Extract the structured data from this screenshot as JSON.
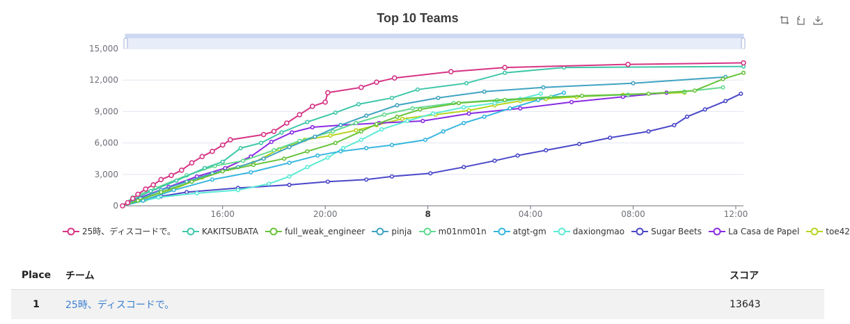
{
  "title": "Top 10 Teams",
  "toolbox": {
    "icons": [
      "zoom-icon",
      "zoom-reset-icon",
      "download-icon"
    ]
  },
  "chart_data": {
    "type": "line",
    "title": "Top 10 Teams",
    "x_axis": {
      "type": "time",
      "tick_labels": [
        "16:00",
        "20:00",
        "8",
        "04:00",
        "08:00",
        "12:00"
      ],
      "range_hours": [
        12.1,
        36.3
      ]
    },
    "y_axis": {
      "tick_labels": [
        "0",
        "3,000",
        "6,000",
        "9,000",
        "12,000",
        "15,000"
      ],
      "ylim": [
        0,
        15000
      ]
    },
    "grid": "horizontal",
    "legend_position": "bottom",
    "data_zoom": "top",
    "series": [
      {
        "name": "25時、ディスコードで。",
        "color": "#d63384",
        "points": [
          [
            12.1,
            0
          ],
          [
            12.3,
            300
          ],
          [
            12.5,
            700
          ],
          [
            12.7,
            1100
          ],
          [
            13.0,
            1600
          ],
          [
            13.3,
            2000
          ],
          [
            13.6,
            2500
          ],
          [
            14.0,
            2900
          ],
          [
            14.4,
            3400
          ],
          [
            14.8,
            4100
          ],
          [
            15.2,
            4700
          ],
          [
            15.6,
            5200
          ],
          [
            16.0,
            5800
          ],
          [
            16.3,
            6300
          ],
          [
            17.6,
            6800
          ],
          [
            18.0,
            7100
          ],
          [
            18.5,
            7900
          ],
          [
            19.0,
            8700
          ],
          [
            19.5,
            9500
          ],
          [
            20.0,
            9900
          ],
          [
            20.1,
            10800
          ],
          [
            21.4,
            11300
          ],
          [
            22.0,
            11800
          ],
          [
            22.7,
            12200
          ],
          [
            24.9,
            12800
          ],
          [
            27.0,
            13200
          ],
          [
            31.8,
            13500
          ],
          [
            36.3,
            13643
          ]
        ]
      },
      {
        "name": "KAKITSUBATA",
        "color": "#3ec7a8",
        "points": [
          [
            12.1,
            0
          ],
          [
            12.5,
            600
          ],
          [
            13.2,
            1400
          ],
          [
            14.2,
            2400
          ],
          [
            15.3,
            3600
          ],
          [
            16.0,
            4200
          ],
          [
            16.7,
            5500
          ],
          [
            17.5,
            6000
          ],
          [
            18.3,
            7000
          ],
          [
            19.3,
            8000
          ],
          [
            20.4,
            8900
          ],
          [
            21.3,
            9700
          ],
          [
            22.6,
            10300
          ],
          [
            23.6,
            11100
          ],
          [
            25.5,
            11700
          ],
          [
            27.0,
            12700
          ],
          [
            29.3,
            13200
          ],
          [
            36.3,
            13300
          ]
        ]
      },
      {
        "name": "full_weak_engineer",
        "color": "#66c33a",
        "points": [
          [
            12.1,
            0
          ],
          [
            12.7,
            500
          ],
          [
            13.6,
            1300
          ],
          [
            14.8,
            2300
          ],
          [
            16.0,
            3300
          ],
          [
            17.2,
            3900
          ],
          [
            18.4,
            4500
          ],
          [
            19.3,
            5200
          ],
          [
            20.4,
            6000
          ],
          [
            21.4,
            7100
          ],
          [
            22.0,
            7800
          ],
          [
            22.8,
            8500
          ],
          [
            23.7,
            9200
          ],
          [
            25.2,
            9800
          ],
          [
            27.0,
            10100
          ],
          [
            30.0,
            10500
          ],
          [
            32.6,
            10700
          ],
          [
            34.4,
            11000
          ],
          [
            35.5,
            12100
          ],
          [
            36.3,
            12700
          ]
        ]
      },
      {
        "name": "pinja",
        "color": "#3fa3c1",
        "points": [
          [
            12.1,
            0
          ],
          [
            12.8,
            700
          ],
          [
            13.6,
            1500
          ],
          [
            14.6,
            2300
          ],
          [
            15.6,
            3100
          ],
          [
            16.6,
            3700
          ],
          [
            17.6,
            4500
          ],
          [
            18.6,
            5600
          ],
          [
            19.6,
            6600
          ],
          [
            20.6,
            7700
          ],
          [
            21.6,
            8600
          ],
          [
            22.8,
            9600
          ],
          [
            24.4,
            10300
          ],
          [
            26.2,
            10900
          ],
          [
            28.5,
            11300
          ],
          [
            32.0,
            11700
          ],
          [
            35.6,
            12300
          ]
        ]
      },
      {
        "name": "m01nm01n",
        "color": "#64d98f",
        "points": [
          [
            12.1,
            0
          ],
          [
            12.5,
            800
          ],
          [
            13.4,
            1700
          ],
          [
            14.6,
            2900
          ],
          [
            15.7,
            3800
          ],
          [
            16.8,
            4300
          ],
          [
            18.0,
            5300
          ],
          [
            19.0,
            6200
          ],
          [
            20.3,
            7100
          ],
          [
            21.2,
            7900
          ],
          [
            22.3,
            8700
          ],
          [
            23.4,
            9300
          ],
          [
            25.0,
            9800
          ],
          [
            26.7,
            10100
          ],
          [
            28.8,
            10400
          ],
          [
            31.8,
            10600
          ],
          [
            34.0,
            10900
          ],
          [
            35.5,
            11300
          ]
        ]
      },
      {
        "name": "atgt-gm",
        "color": "#37b6df",
        "points": [
          [
            12.1,
            0
          ],
          [
            12.9,
            500
          ],
          [
            14.1,
            1500
          ],
          [
            15.6,
            2500
          ],
          [
            17.1,
            3200
          ],
          [
            18.6,
            4100
          ],
          [
            19.7,
            4800
          ],
          [
            20.6,
            5200
          ],
          [
            21.6,
            5500
          ],
          [
            22.6,
            5800
          ],
          [
            23.9,
            6300
          ],
          [
            24.6,
            7100
          ],
          [
            25.4,
            7900
          ],
          [
            26.2,
            8500
          ],
          [
            27.2,
            9300
          ],
          [
            28.3,
            10100
          ],
          [
            29.3,
            10800
          ]
        ]
      },
      {
        "name": "daxiongmao",
        "color": "#5bead5",
        "points": [
          [
            12.1,
            0
          ],
          [
            13.5,
            800
          ],
          [
            15.0,
            1200
          ],
          [
            16.6,
            1500
          ],
          [
            17.8,
            2100
          ],
          [
            18.6,
            2800
          ],
          [
            19.3,
            3700
          ],
          [
            20.1,
            4600
          ],
          [
            20.7,
            5500
          ],
          [
            21.4,
            6300
          ],
          [
            22.2,
            7300
          ],
          [
            23.2,
            8100
          ],
          [
            24.2,
            8800
          ],
          [
            25.4,
            9400
          ],
          [
            26.6,
            9800
          ],
          [
            27.6,
            10200
          ],
          [
            28.4,
            10700
          ]
        ]
      },
      {
        "name": "Sugar Beets",
        "color": "#4a47c9",
        "points": [
          [
            12.1,
            0
          ],
          [
            12.9,
            500
          ],
          [
            13.6,
            900
          ],
          [
            14.6,
            1300
          ],
          [
            16.6,
            1700
          ],
          [
            18.6,
            2000
          ],
          [
            20.1,
            2300
          ],
          [
            21.6,
            2500
          ],
          [
            22.6,
            2800
          ],
          [
            24.1,
            3100
          ],
          [
            25.4,
            3700
          ],
          [
            26.6,
            4300
          ],
          [
            27.5,
            4800
          ],
          [
            28.6,
            5300
          ],
          [
            29.9,
            5900
          ],
          [
            31.1,
            6500
          ],
          [
            32.6,
            7100
          ],
          [
            33.6,
            7700
          ],
          [
            34.1,
            8500
          ],
          [
            34.8,
            9200
          ],
          [
            35.6,
            10000
          ],
          [
            36.2,
            10700
          ]
        ]
      },
      {
        "name": "La Casa de Papel",
        "color": "#8a2be2",
        "points": [
          [
            12.1,
            0
          ],
          [
            12.8,
            800
          ],
          [
            13.9,
            1800
          ],
          [
            15.0,
            2800
          ],
          [
            16.1,
            3600
          ],
          [
            17.1,
            4700
          ],
          [
            17.9,
            6100
          ],
          [
            18.7,
            7000
          ],
          [
            19.5,
            7500
          ],
          [
            20.6,
            7700
          ],
          [
            22.1,
            7900
          ],
          [
            23.8,
            8100
          ],
          [
            25.6,
            8800
          ],
          [
            27.6,
            9300
          ],
          [
            29.6,
            9900
          ],
          [
            31.6,
            10400
          ],
          [
            33.3,
            10800
          ]
        ]
      },
      {
        "name": "toe42",
        "color": "#b7d41e",
        "points": [
          [
            12.1,
            0
          ],
          [
            13.0,
            600
          ],
          [
            14.1,
            1600
          ],
          [
            15.2,
            2700
          ],
          [
            16.2,
            3500
          ],
          [
            17.2,
            4100
          ],
          [
            18.2,
            5400
          ],
          [
            19.2,
            6300
          ],
          [
            20.2,
            6700
          ],
          [
            21.2,
            7200
          ],
          [
            22.0,
            7700
          ],
          [
            23.0,
            8300
          ],
          [
            24.3,
            8700
          ],
          [
            25.6,
            9100
          ],
          [
            26.6,
            9600
          ],
          [
            27.6,
            10000
          ],
          [
            28.6,
            10200
          ],
          [
            29.8,
            10400
          ],
          [
            31.6,
            10600
          ],
          [
            34.0,
            10800
          ]
        ]
      }
    ]
  },
  "table": {
    "headers": {
      "place": "Place",
      "team": "チーム",
      "score": "スコア"
    },
    "rows": [
      {
        "place": "1",
        "team": "25時、ディスコードで。",
        "score": "13643"
      }
    ]
  }
}
